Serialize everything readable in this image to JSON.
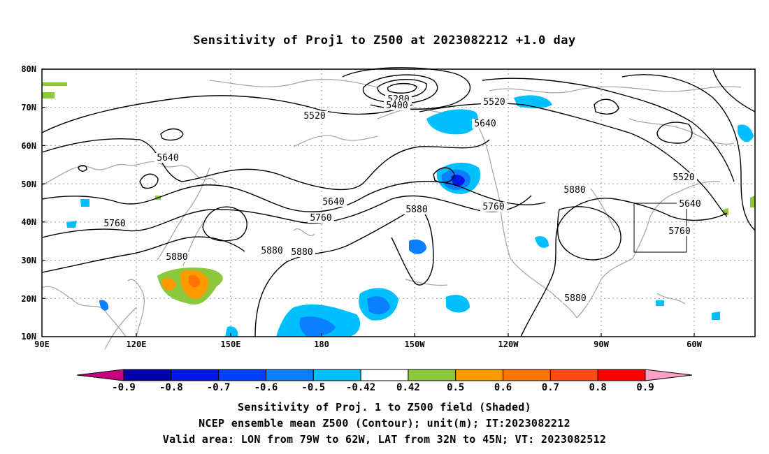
{
  "title": "Sensitivity of Proj1 to Z500 at 2023082212 +1.0 day",
  "lat_labels": [
    "80N",
    "70N",
    "60N",
    "50N",
    "40N",
    "30N",
    "20N",
    "10N"
  ],
  "lon_labels": [
    "90E",
    "120E",
    "150E",
    "180",
    "150W",
    "120W",
    "90W",
    "60W"
  ],
  "contour_labels": [
    "5280",
    "5400",
    "5520",
    "5520",
    "5640",
    "5640",
    "5640",
    "5760",
    "5760",
    "5760",
    "5760",
    "5880",
    "5880",
    "5880",
    "5880",
    "5880",
    "5880",
    "5520",
    "5640"
  ],
  "colorbar": {
    "labels": [
      "-0.9",
      "-0.8",
      "-0.7",
      "-0.6",
      "-0.5",
      "-0.42",
      "0.42",
      "0.5",
      "0.6",
      "0.7",
      "0.8",
      "0.9"
    ],
    "colors": [
      "#c8007f",
      "#0000aa",
      "#0019e6",
      "#0040ff",
      "#0a7fff",
      "#00bfff",
      "#ffffff",
      "#8cc83c",
      "#ff9900",
      "#ff7300",
      "#ff4a14",
      "#ff0000",
      "#ff9fc8"
    ]
  },
  "captions": {
    "line1": "Sensitivity of Proj. 1 to Z500 field (Shaded)",
    "line2": "NCEP ensemble mean Z500 (Contour); unit(m); IT:2023082212",
    "line3": "Valid area: LON from 79W to 62W, LAT from 32N to 45N; VT: 2023082512"
  }
}
